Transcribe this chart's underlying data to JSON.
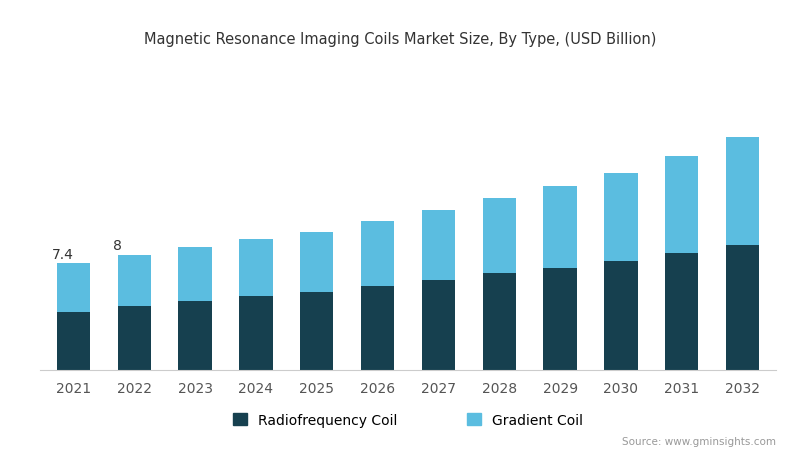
{
  "title": "Magnetic Resonance Imaging Coils Market Size, By Type, (USD Billion)",
  "years": [
    2021,
    2022,
    2023,
    2024,
    2025,
    2026,
    2027,
    2028,
    2029,
    2030,
    2031,
    2032
  ],
  "rf_coil": [
    4.0,
    4.4,
    4.75,
    5.1,
    5.4,
    5.85,
    6.25,
    6.7,
    7.1,
    7.55,
    8.1,
    8.7
  ],
  "gradient_coil": [
    3.4,
    3.6,
    3.75,
    3.95,
    4.2,
    4.5,
    4.85,
    5.25,
    5.65,
    6.15,
    6.75,
    7.45
  ],
  "rf_color": "#16404f",
  "gradient_color": "#5bbde0",
  "background_color": "#ffffff",
  "annotations": [
    {
      "year_idx": 0,
      "value": "7.4"
    },
    {
      "year_idx": 1,
      "value": "8"
    }
  ],
  "legend_rf": "Radiofrequency Coil",
  "legend_gradient": "Gradient Coil",
  "source_text": "Source: www.gminsights.com",
  "bar_width": 0.55,
  "ylim": [
    0,
    22
  ]
}
